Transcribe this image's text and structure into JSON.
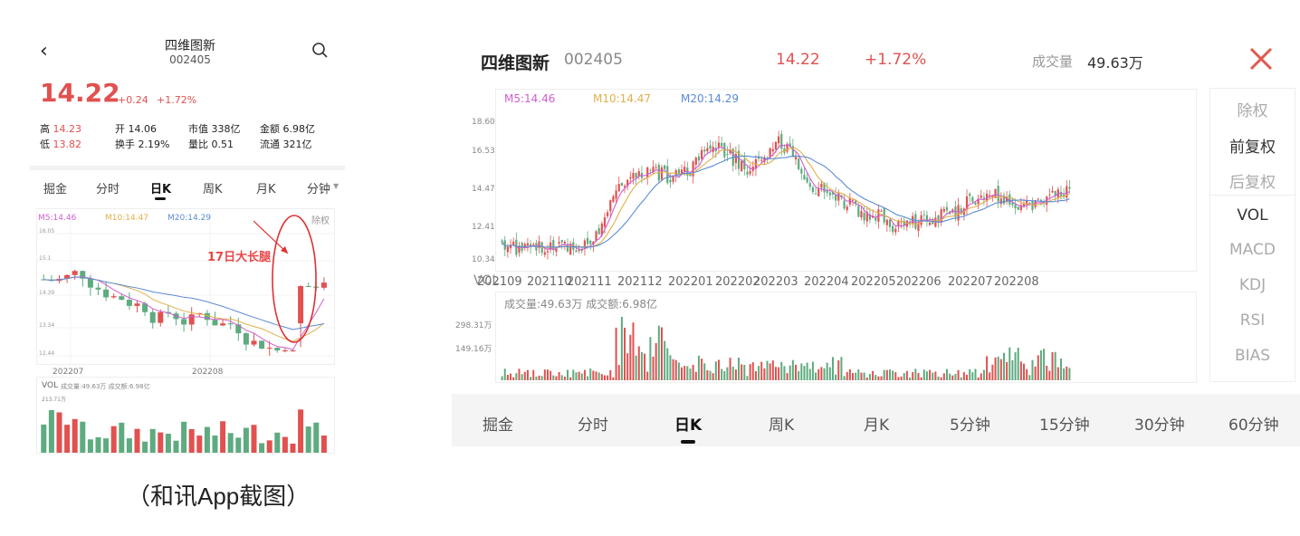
{
  "left": {
    "nav": {
      "name": "四维图新",
      "code": "002405"
    },
    "price": "14.22",
    "change": "+0.24",
    "change_pct": "+1.72%",
    "stats": [
      {
        "label": "高",
        "value": "14.23",
        "red": true
      },
      {
        "label": "开",
        "value": "14.06",
        "red": false
      },
      {
        "label": "市值",
        "value": "338亿",
        "red": false
      },
      {
        "label": "金额",
        "value": "6.98亿",
        "red": false
      },
      {
        "label": "低",
        "value": "13.82",
        "red": true
      },
      {
        "label": "换手",
        "value": "2.19%",
        "red": false
      },
      {
        "label": "量比",
        "value": "0.51",
        "red": false
      },
      {
        "label": "流通",
        "value": "321亿",
        "red": false
      }
    ],
    "tabs": [
      "掘金",
      "分时",
      "日K",
      "周K",
      "月K",
      "分钟"
    ],
    "ma": {
      "m5": "M5:14.46",
      "m10": "M10:14.47",
      "m20": "M20:14.29"
    },
    "adj": "除权",
    "y_ticks": [
      "16.05",
      "15.1",
      "14.39",
      "13.34",
      "12.44"
    ],
    "x_ticks": [
      "202207",
      "202208"
    ],
    "annotation": "17日大长腿",
    "vol": {
      "label": "VOL",
      "info": "成交量:49.63万 成交额:6.98亿",
      "max": "213.71万"
    },
    "caption": "（和讯App截图）"
  },
  "right": {
    "header": {
      "name": "四维图新",
      "code": "002405",
      "price": "14.22",
      "change_pct": "+1.72%",
      "vol_label": "成交量",
      "vol_value": "49.63万"
    },
    "ma": {
      "m5": "M5:14.46",
      "m10": "M10:14.47",
      "m20": "M20:14.29"
    },
    "y_ticks": [
      "18.60",
      "16.53",
      "14.47",
      "12.41",
      "10.34"
    ],
    "x_ticks": [
      "202109",
      "202110",
      "202111",
      "202112",
      "202201",
      "202202",
      "202203",
      "202204",
      "202205",
      "202206",
      "202207",
      "202208"
    ],
    "vol": {
      "label": "VOL",
      "info": "成交量:49.63万 成交额:6.98亿",
      "ticks": [
        "298.31万",
        "149.16万"
      ]
    },
    "side": [
      "除权",
      "前复权",
      "后复权",
      "VOL",
      "MACD",
      "KDJ",
      "RSI",
      "BIAS"
    ],
    "side_active": [
      false,
      true,
      false,
      true,
      false,
      false,
      false,
      false
    ],
    "tabs": [
      "掘金",
      "分时",
      "日K",
      "周K",
      "月K",
      "5分钟",
      "15分钟",
      "30分钟",
      "60分钟"
    ]
  },
  "colors": {
    "up": "#e0514f",
    "down": "#5dab7f",
    "m5": "#d05ed0",
    "m10": "#e0b04a",
    "m20": "#5b8bd6"
  }
}
